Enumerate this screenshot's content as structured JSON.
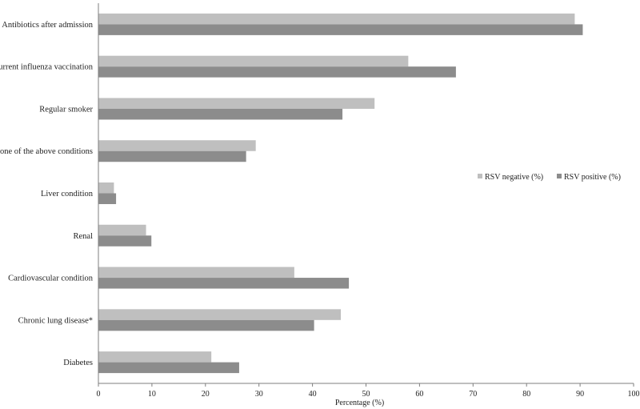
{
  "chart_data": {
    "type": "bar",
    "orientation": "horizontal",
    "categories": [
      "Antibiotics after admission",
      "Current influenza vaccination",
      "Regular smoker",
      "None of the above conditions",
      "Liver condition",
      "Renal",
      "Cardiovascular condition",
      "Chronic lung disease*",
      "Diabetes"
    ],
    "series": [
      {
        "name": "RSV negative (%)",
        "color": "#bfbfbf",
        "values": [
          89.0,
          57.9,
          51.6,
          29.4,
          2.9,
          8.9,
          36.6,
          45.3,
          21.1
        ]
      },
      {
        "name": "RSV positive (%)",
        "color": "#8c8c8c",
        "values": [
          90.5,
          66.8,
          45.6,
          27.6,
          3.3,
          9.9,
          46.8,
          40.3,
          26.3
        ]
      }
    ],
    "xlim": [
      0,
      100
    ],
    "xticks": [
      0,
      10,
      20,
      30,
      40,
      50,
      60,
      70,
      80,
      90,
      100
    ],
    "xlabel": "Percentage (%)",
    "ylabel": "",
    "title": "",
    "grid": false,
    "legend_position": "right"
  }
}
